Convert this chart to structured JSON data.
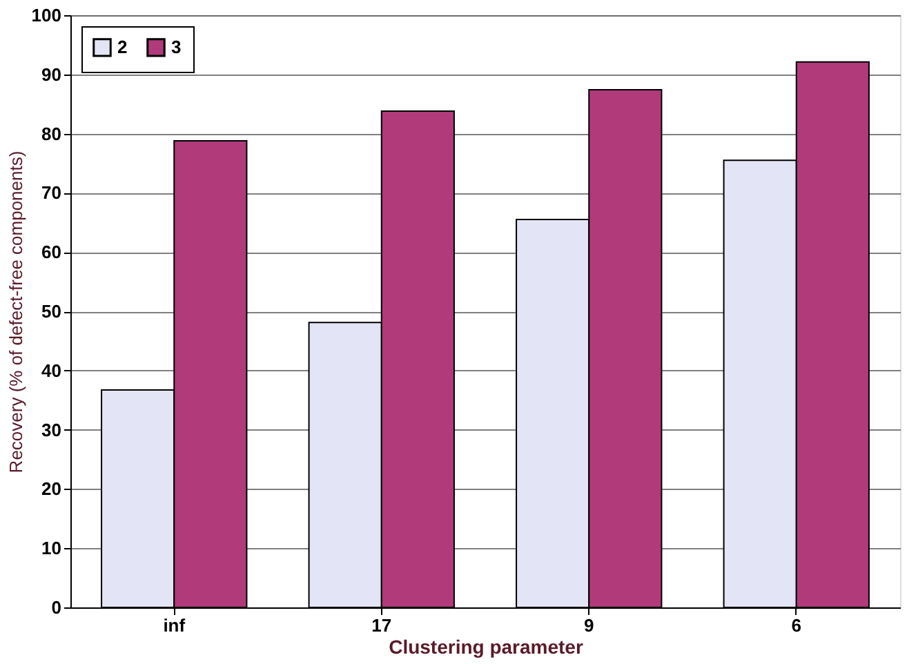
{
  "chart_data": {
    "type": "bar",
    "xlabel": "Clustering parameter",
    "ylabel": "Recovery (% of defect-free components)",
    "categories": [
      "inf",
      "17",
      "9",
      "6"
    ],
    "series": [
      {
        "name": "2",
        "color": "#e4e4f7",
        "values": [
          36.7,
          48.1,
          65.5,
          75.5
        ]
      },
      {
        "name": "3",
        "color": "#b03a7a",
        "values": [
          78.8,
          83.8,
          87.4,
          92.1
        ]
      }
    ],
    "ylim": [
      0,
      100
    ],
    "yticks": [
      0,
      10,
      20,
      30,
      40,
      50,
      60,
      70,
      80,
      90,
      100
    ],
    "grid": "y",
    "legend": "top left"
  }
}
